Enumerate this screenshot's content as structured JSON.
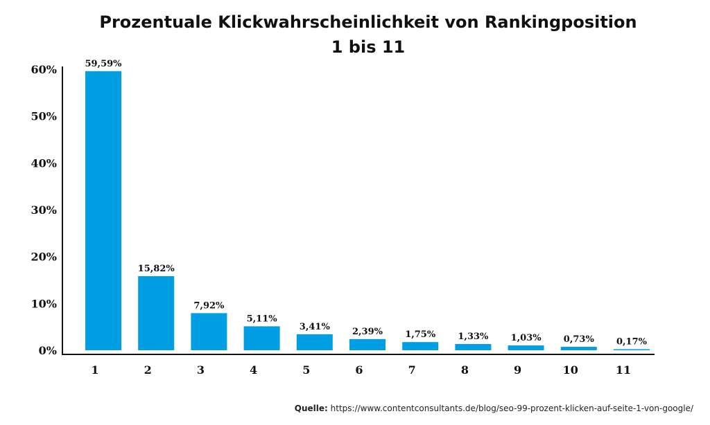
{
  "chart_data": {
    "type": "bar",
    "title_line1": "Prozentuale Klickwahrscheinlichkeit von Rankingposition",
    "title_line2": "1 bis 11",
    "xlabel": "",
    "ylabel": "",
    "categories": [
      "1",
      "2",
      "3",
      "4",
      "5",
      "6",
      "7",
      "8",
      "9",
      "10",
      "11"
    ],
    "values": [
      59.59,
      15.82,
      7.92,
      5.11,
      3.41,
      2.39,
      1.75,
      1.33,
      1.03,
      0.73,
      0.17
    ],
    "value_labels": [
      "59,59%",
      "15,82%",
      "7,92%",
      "5,11%",
      "3,41%",
      "2,39%",
      "1,75%",
      "1,33%",
      "1,03%",
      "0,73%",
      "0,17%"
    ],
    "yticks": [
      0,
      10,
      20,
      30,
      40,
      50,
      60
    ],
    "ytick_labels": [
      "0%",
      "10%",
      "20%",
      "30%",
      "40%",
      "50%",
      "60%"
    ],
    "ylim": [
      0,
      60
    ],
    "grid": false,
    "bar_color": "#009fe3",
    "source_label": "Quelle:",
    "source_url": "https://www.contentconsultants.de/blog/seo-99-prozent-klicken-auf-seite-1-von-google/"
  }
}
